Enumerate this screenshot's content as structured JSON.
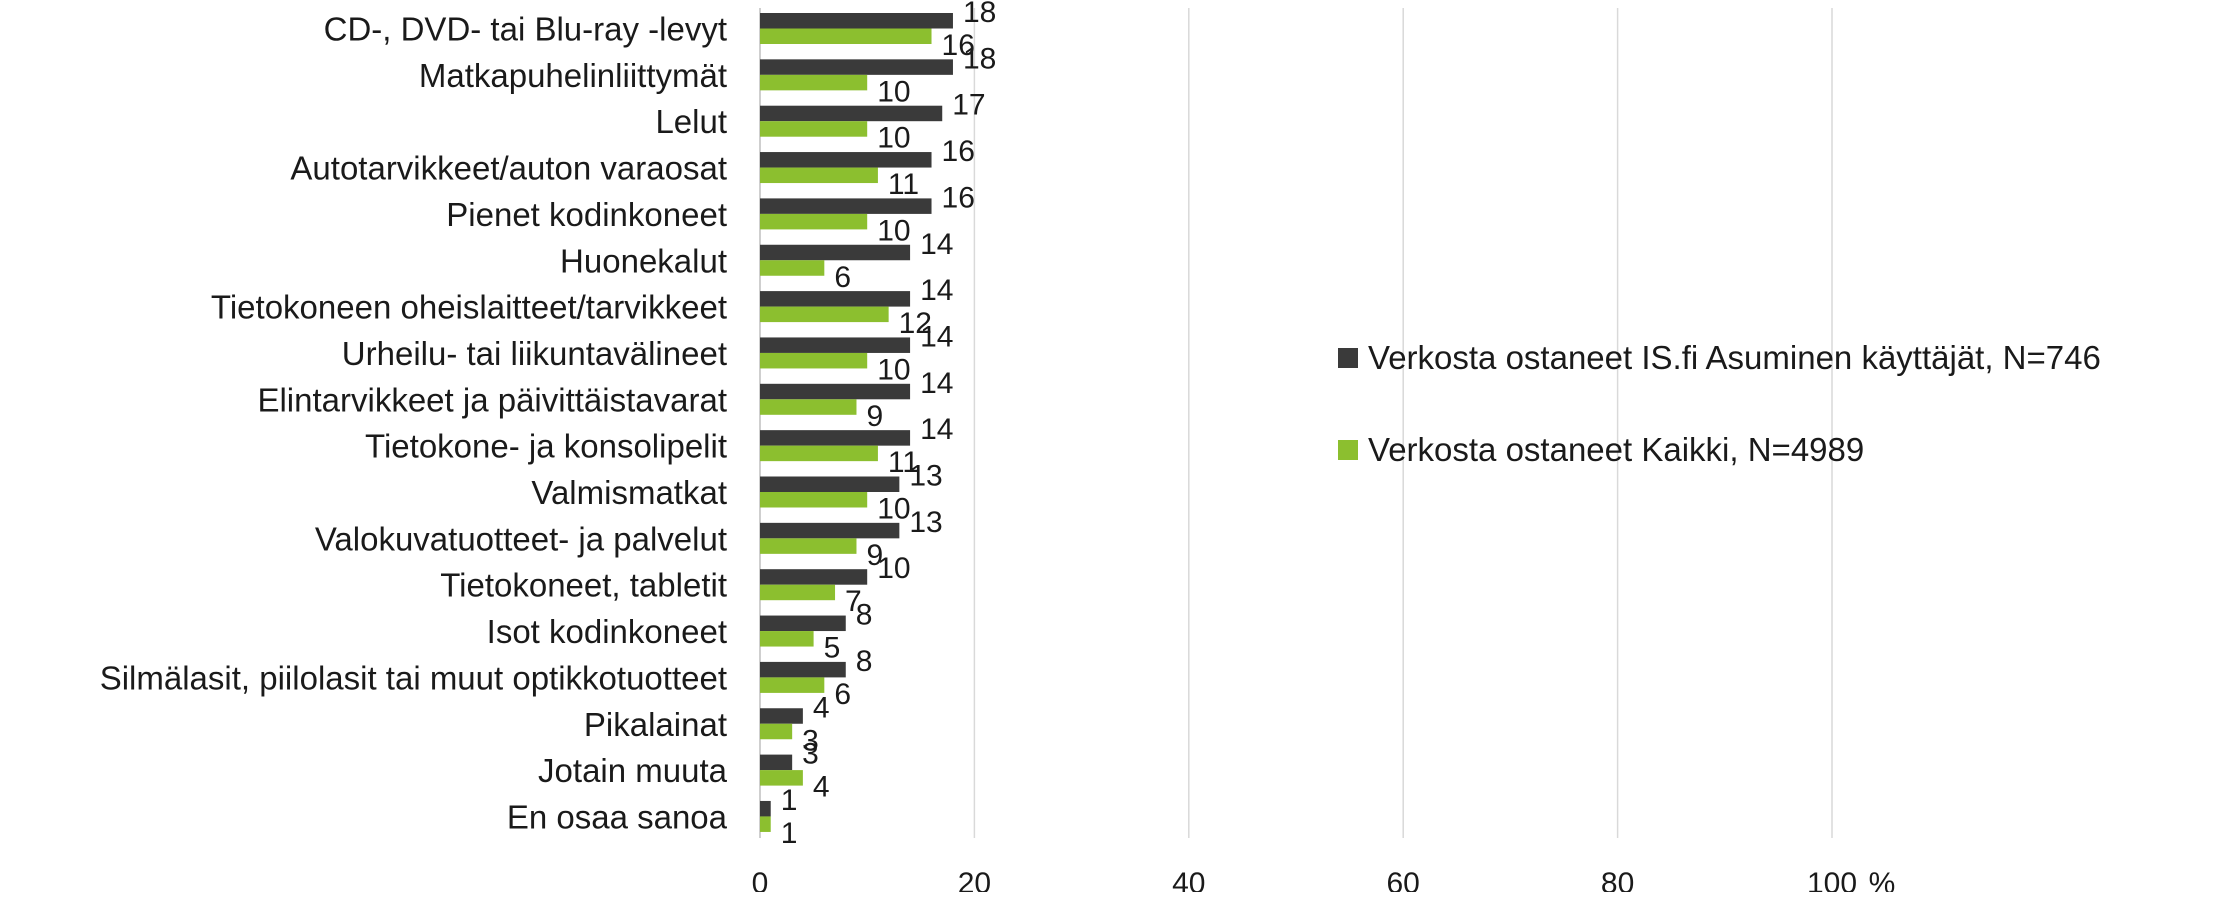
{
  "chart_data": {
    "type": "bar",
    "orientation": "horizontal",
    "categories": [
      "CD-, DVD- tai Blu-ray -levyt",
      "Matkapuhelinliittymät",
      "Lelut",
      "Autotarvikkeet/auton varaosat",
      "Pienet kodinkoneet",
      "Huonekalut",
      "Tietokoneen oheislaitteet/tarvikkeet",
      "Urheilu- tai liikuntavälineet",
      "Elintarvikkeet ja päivittäistavarat",
      "Tietokone- ja konsolipelit",
      "Valmismatkat",
      "Valokuvatuotteet- ja palvelut",
      "Tietokoneet, tabletit",
      "Isot kodinkoneet",
      "Silmälasit, piilolasit tai muut optikkotuotteet",
      "Pikalainat",
      "Jotain muuta",
      "En osaa sanoa"
    ],
    "series": [
      {
        "name": "Verkosta ostaneet IS.fi Asuminen käyttäjät, N=746",
        "color": "#3a3a3a",
        "values": [
          18,
          18,
          17,
          16,
          16,
          14,
          14,
          14,
          14,
          14,
          13,
          13,
          10,
          8,
          8,
          4,
          3,
          1
        ]
      },
      {
        "name": "Verkosta ostaneet Kaikki, N=4989",
        "color": "#8cbf2f",
        "values": [
          16,
          10,
          10,
          11,
          10,
          6,
          12,
          10,
          9,
          11,
          10,
          9,
          7,
          5,
          6,
          3,
          4,
          1
        ]
      }
    ],
    "xlim": [
      0,
      100
    ],
    "xticks": [
      "0",
      "20",
      "40",
      "60",
      "80",
      "100"
    ],
    "unit": "%",
    "grid": true,
    "legend_position": "right"
  }
}
